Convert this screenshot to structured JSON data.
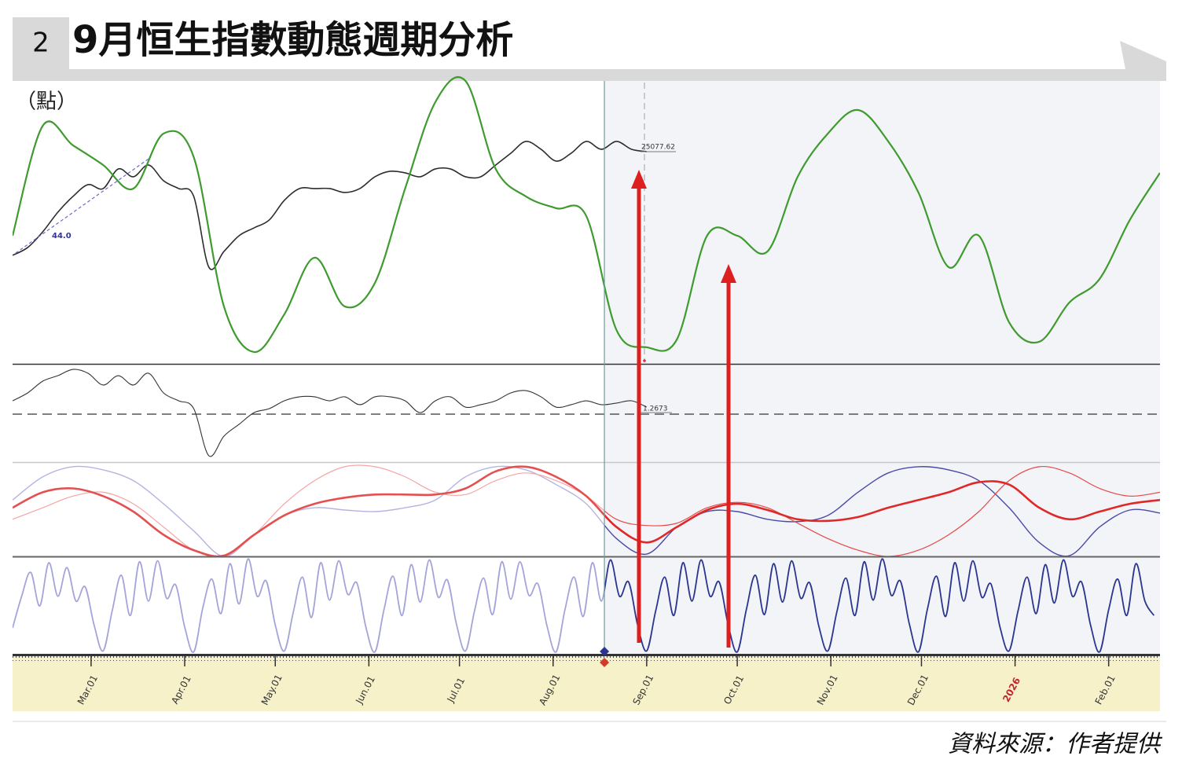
{
  "header": {
    "number": "2",
    "title": "9月恒生指數動態週期分析"
  },
  "source": "資料來源：作者提供",
  "chart_data": [
    {
      "type": "line",
      "y_label": "（點）",
      "xlim": [
        0,
        380
      ],
      "ylim": [
        15740,
        28130
      ],
      "annotations": [
        "44.0"
      ],
      "series": [
        {
          "color": "#2d2d2d",
          "linewidth": 1.6,
          "x": [
            0,
            5,
            10,
            15,
            20,
            25,
            30,
            35,
            40,
            45,
            50,
            55,
            60,
            65,
            70,
            75,
            80,
            85,
            90,
            95,
            100,
            105,
            110,
            115,
            120,
            125,
            130,
            135,
            140,
            145,
            150,
            155,
            160,
            165,
            170,
            175,
            180,
            185,
            190,
            195,
            200,
            205,
            210
          ],
          "values": [
            20497,
            20844,
            21538,
            22405,
            23099,
            23620,
            23446,
            24314,
            23967,
            24487,
            23793,
            23446,
            23099,
            19976,
            20670,
            21364,
            21711,
            22058,
            22926,
            23446,
            23446,
            23446,
            23273,
            23446,
            23967,
            24210,
            24140,
            23967,
            24314,
            24314,
            23967,
            23967,
            24487,
            25008,
            25528,
            25181,
            24661,
            25008,
            25528,
            25181,
            25528,
            25181,
            25077.62
          ]
        },
        {
          "color": "#3f9b2f",
          "linewidth": 2.2,
          "x": [
            0,
            10,
            20,
            30,
            40,
            50,
            60,
            70,
            80,
            90,
            100,
            110,
            120,
            130,
            140,
            150,
            160,
            170,
            180,
            190,
            200,
            210,
            220,
            230,
            240,
            250,
            260,
            270,
            280,
            290,
            300,
            310,
            320,
            330,
            340,
            350,
            360,
            370,
            380
          ],
          "values": [
            21364,
            26222,
            25355,
            24487,
            23446,
            25875,
            24834,
            18241,
            16229,
            17894,
            20393,
            18241,
            19282,
            23446,
            27263,
            28200,
            24314,
            23099,
            22579,
            22232,
            17200,
            16437,
            16784,
            21364,
            21364,
            20670,
            23967,
            25875,
            26916,
            25528,
            23273,
            19976,
            21364,
            17547,
            16680,
            18415,
            19456,
            22058,
            24140
          ]
        }
      ]
    },
    {
      "type": "line",
      "xlim": [
        0,
        380
      ],
      "ylim": [
        0.744,
        1.671
      ],
      "reference_line": 1.2,
      "series": [
        {
          "color": "#333333",
          "linewidth": 1.1,
          "x": [
            0,
            5,
            10,
            15,
            20,
            25,
            30,
            35,
            40,
            45,
            50,
            55,
            60,
            65,
            70,
            75,
            80,
            85,
            90,
            95,
            100,
            105,
            110,
            115,
            120,
            125,
            130,
            135,
            140,
            145,
            150,
            155,
            160,
            165,
            170,
            175,
            180,
            185,
            190,
            195,
            200,
            205,
            210
          ],
          "values": [
            1.327,
            1.402,
            1.514,
            1.566,
            1.626,
            1.589,
            1.477,
            1.566,
            1.477,
            1.589,
            1.402,
            1.327,
            1.252,
            0.804,
            0.991,
            1.103,
            1.215,
            1.252,
            1.327,
            1.365,
            1.365,
            1.327,
            1.365,
            1.29,
            1.365,
            1.365,
            1.327,
            1.215,
            1.327,
            1.365,
            1.267,
            1.29,
            1.327,
            1.402,
            1.424,
            1.365,
            1.267,
            1.29,
            1.327,
            1.29,
            1.305,
            1.327,
            1.2673
          ]
        }
      ]
    },
    {
      "type": "line",
      "xlim": [
        0,
        380
      ],
      "ylim": [
        0,
        100
      ],
      "divider_x": 196,
      "series": [
        {
          "color": "#b4b4e2",
          "projection_color": "#4a4aa8",
          "linewidth": 1.4,
          "x": [
            0,
            10,
            20,
            30,
            40,
            50,
            60,
            70,
            80,
            90,
            100,
            110,
            120,
            130,
            140,
            150,
            160,
            170,
            180,
            190,
            200,
            210,
            220,
            230,
            240,
            250,
            260,
            270,
            280,
            290,
            300,
            310,
            320,
            330,
            340,
            350,
            360,
            370,
            380
          ],
          "values": [
            60.8,
            85.8,
            96.7,
            93.3,
            81.7,
            56.7,
            27.5,
            0,
            23.3,
            44.2,
            52.5,
            50,
            48.3,
            52.5,
            60.8,
            85.8,
            96.7,
            93.3,
            77.5,
            56.7,
            19.2,
            2.5,
            31.7,
            48.3,
            48.3,
            40,
            37.5,
            44.2,
            69.2,
            90,
            96.7,
            93.3,
            81.7,
            52.5,
            15,
            0.8,
            31.7,
            50,
            46.7
          ]
        },
        {
          "color": "#f4a5a5",
          "projection_color": "#e54a4a",
          "linewidth": 1.2,
          "x": [
            0,
            10,
            20,
            30,
            40,
            50,
            60,
            70,
            80,
            90,
            100,
            110,
            120,
            130,
            140,
            150,
            160,
            170,
            180,
            190,
            200,
            210,
            220,
            230,
            240,
            250,
            260,
            270,
            280,
            290,
            300,
            310,
            320,
            330,
            340,
            350,
            360,
            370,
            380
          ],
          "values": [
            40,
            52.5,
            65,
            69.2,
            56.7,
            31.7,
            6.7,
            0,
            23.3,
            56.7,
            81.7,
            96.7,
            96.7,
            85.8,
            69.2,
            66.7,
            81.7,
            90,
            81.7,
            65,
            40,
            33.3,
            35.8,
            52.5,
            58.3,
            52.5,
            35.8,
            19.2,
            6.7,
            0,
            6.7,
            23.3,
            48.3,
            81.7,
            96.7,
            90,
            73.3,
            65,
            69.2
          ]
        },
        {
          "color": "#e45050",
          "projection_color": "#e02828",
          "linewidth": 2.6,
          "x": [
            0,
            10,
            20,
            30,
            40,
            50,
            60,
            70,
            80,
            90,
            100,
            110,
            120,
            130,
            140,
            150,
            160,
            170,
            180,
            190,
            200,
            210,
            220,
            230,
            240,
            250,
            260,
            270,
            280,
            290,
            300,
            310,
            320,
            330,
            340,
            350,
            360,
            370,
            380
          ],
          "values": [
            52.5,
            69.2,
            73.3,
            65,
            48.3,
            23.3,
            6.7,
            0.8,
            23.3,
            44.2,
            56.7,
            63.3,
            66.7,
            66.7,
            66.7,
            73.3,
            91.7,
            96.7,
            85.8,
            65,
            31.7,
            15,
            31.7,
            50,
            56.7,
            50,
            40,
            38.3,
            42.5,
            52.5,
            60.8,
            69.2,
            80,
            77.5,
            52.5,
            40,
            48.3,
            56.7,
            60.8
          ]
        }
      ]
    },
    {
      "type": "line",
      "xlim": [
        0,
        380
      ],
      "ylim": [
        0,
        100
      ],
      "divider_x": 196,
      "xticks": [
        {
          "value": 26,
          "label": "Mar.01"
        },
        {
          "value": 57,
          "label": "Apr.01"
        },
        {
          "value": 87,
          "label": "May.01"
        },
        {
          "value": 118,
          "label": "Jun.01"
        },
        {
          "value": 148,
          "label": "Jul.01"
        },
        {
          "value": 179,
          "label": "Aug.01"
        },
        {
          "value": 210,
          "label": "Sep.01"
        },
        {
          "value": 240,
          "label": "Oct.01"
        },
        {
          "value": 271,
          "label": "Nov.01"
        },
        {
          "value": 301,
          "label": "Dec.01"
        },
        {
          "value": 332,
          "label": "2026"
        },
        {
          "value": 363,
          "label": "Feb.01"
        }
      ],
      "series": [
        {
          "color": "#a4a4da",
          "projection_color": "#2a3590",
          "linewidth": 1.8,
          "x": [
            0,
            3,
            6,
            9,
            12,
            15,
            18,
            21,
            24,
            27,
            30,
            33,
            36,
            39,
            42,
            45,
            48,
            51,
            54,
            57,
            60,
            63,
            66,
            69,
            72,
            75,
            78,
            81,
            84,
            87,
            90,
            93,
            96,
            99,
            102,
            105,
            108,
            111,
            114,
            117,
            120,
            123,
            126,
            129,
            132,
            135,
            138,
            141,
            144,
            147,
            150,
            153,
            156,
            159,
            162,
            165,
            168,
            171,
            174,
            177,
            180,
            183,
            186,
            189,
            192,
            195,
            198,
            201,
            204,
            207,
            210,
            213,
            216,
            219,
            222,
            225,
            228,
            231,
            234,
            237,
            240,
            243,
            246,
            249,
            252,
            255,
            258,
            261,
            264,
            267,
            270,
            273,
            276,
            279,
            282,
            285,
            288,
            291,
            294,
            297,
            300,
            303,
            306,
            309,
            312,
            315,
            318,
            321,
            324,
            327,
            330,
            333,
            336,
            339,
            342,
            345,
            348,
            351,
            354,
            357,
            360,
            363,
            366,
            369,
            372,
            375,
            378
          ],
          "values": [
            27,
            60,
            85,
            50,
            95,
            60,
            90,
            55,
            70,
            30,
            3,
            45,
            82,
            40,
            96,
            55,
            97,
            58,
            72,
            28,
            2,
            48,
            78,
            42,
            94,
            52,
            99,
            60,
            76,
            30,
            3,
            44,
            80,
            38,
            95,
            56,
            97,
            62,
            74,
            28,
            2,
            46,
            81,
            40,
            93,
            54,
            98,
            59,
            77,
            31,
            3,
            45,
            79,
            41,
            96,
            57,
            96,
            61,
            73,
            29,
            2,
            47,
            80,
            39,
            95,
            55,
            98,
            60,
            75,
            30,
            3,
            45,
            80,
            40,
            95,
            55,
            98,
            60,
            75,
            30,
            2,
            46,
            82,
            41,
            94,
            54,
            97,
            58,
            74,
            29,
            3,
            44,
            79,
            40,
            96,
            56,
            99,
            61,
            76,
            31,
            2,
            47,
            81,
            39,
            95,
            55,
            97,
            59,
            73,
            28,
            3,
            45,
            80,
            42,
            93,
            53,
            98,
            60,
            75,
            30,
            2,
            46,
            78,
            40,
            94,
            55,
            40
          ]
        }
      ]
    }
  ]
}
